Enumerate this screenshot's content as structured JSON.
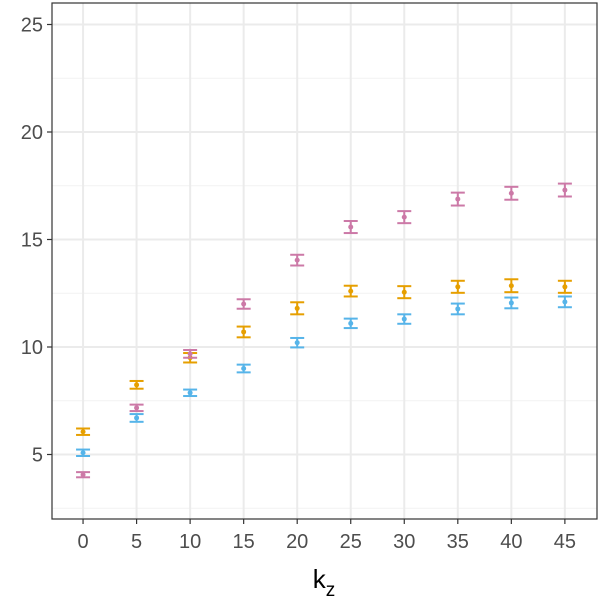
{
  "chart_data": {
    "type": "errorbar-scatter",
    "x_label": "k",
    "x_label_sub": "z",
    "x": [
      0,
      5,
      10,
      15,
      20,
      25,
      30,
      35,
      40,
      45
    ],
    "series": [
      {
        "color": "#56B4E9",
        "values": [
          5.08,
          6.7,
          7.87,
          9.0,
          10.2,
          11.1,
          11.3,
          11.77,
          12.05,
          12.1
        ],
        "errors": [
          0.15,
          0.18,
          0.15,
          0.18,
          0.22,
          0.22,
          0.22,
          0.25,
          0.25,
          0.25
        ]
      },
      {
        "color": "#E69F00",
        "values": [
          6.06,
          8.24,
          9.5,
          10.7,
          11.8,
          12.6,
          12.55,
          12.8,
          12.85,
          12.8
        ],
        "errors": [
          0.15,
          0.18,
          0.22,
          0.25,
          0.28,
          0.25,
          0.28,
          0.28,
          0.3,
          0.28
        ]
      },
      {
        "color": "#CC79A7",
        "values": [
          4.06,
          7.17,
          9.68,
          12.0,
          14.04,
          15.58,
          16.04,
          16.88,
          17.15,
          17.3
        ],
        "errors": [
          0.12,
          0.15,
          0.18,
          0.22,
          0.25,
          0.28,
          0.28,
          0.3,
          0.3,
          0.3
        ]
      }
    ],
    "xlim": [
      -2.9,
      48
    ],
    "ylim": [
      2,
      26
    ],
    "xticks": [
      0,
      5,
      10,
      15,
      20,
      25,
      30,
      35,
      40,
      45
    ],
    "yticks": [
      5,
      10,
      15,
      20,
      25
    ],
    "yminorticks": [
      2.5,
      7.5,
      12.5,
      17.5,
      22.5
    ],
    "grid": true
  }
}
